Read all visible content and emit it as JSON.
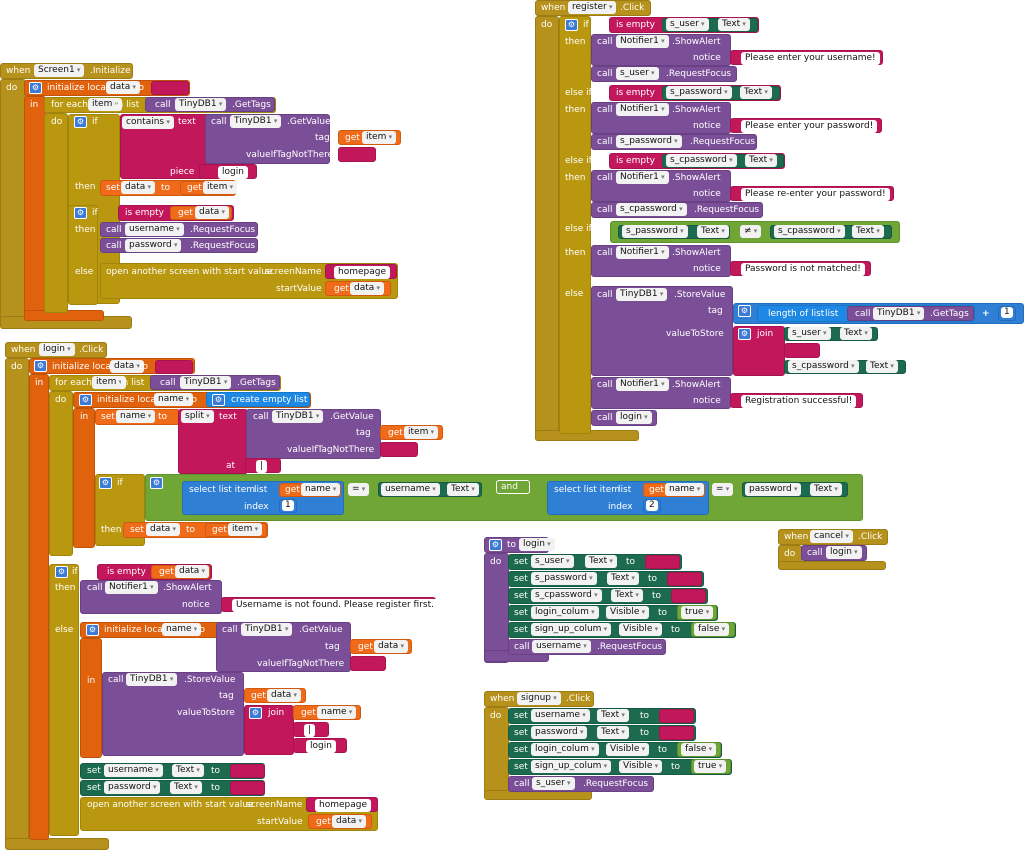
{
  "screen1_init": {
    "when": "when",
    "component": "Screen1",
    "event": ".Initialize",
    "do": "do",
    "in": "in",
    "init_local": "initialize local",
    "var_data": "data",
    "to": "to",
    "for_each": "for each",
    "var_item": "item",
    "in_list": "in list",
    "call": "call",
    "tinydb": "TinyDB1",
    "gettags": ".GetTags",
    "if": "if",
    "contains": "contains",
    "text_lbl": "text",
    "getvalue": ".GetValue",
    "tag": "tag",
    "get": "get",
    "value_if_tag_not_there": "valueIfTagNotThere",
    "piece": "piece",
    "login_str": "login",
    "then": "then",
    "set": "set",
    "is_empty": "is empty",
    "username": "username",
    "password": "password",
    "request_focus": ".RequestFocus",
    "else": "else",
    "open_screen": "open another screen with start value",
    "screen_name": "screenName",
    "homepage": "homepage",
    "start_value": "startValue"
  },
  "register_click": {
    "when": "when",
    "component": "register",
    "event": ".Click",
    "do": "do",
    "if": "if",
    "is_empty": "is empty",
    "s_user": "s_user",
    "text": "Text",
    "then": "then",
    "call": "call",
    "notifier": "Notifier1",
    "show_alert": ".ShowAlert",
    "notice": "notice",
    "msg_username": "Please enter your username!",
    "request_focus": ".RequestFocus",
    "else_if": "else if",
    "s_password": "s_password",
    "msg_password": "Please enter your password!",
    "s_cpassword": "s_cpassword",
    "msg_reenter": "Please re-enter your password!",
    "neq": "≠",
    "msg_not_matched": "Password is not matched!",
    "else": "else",
    "tinydb": "TinyDB1",
    "store_value": ".StoreValue",
    "tag": "tag",
    "length_of_list": "length of list",
    "list": "list",
    "gettags": ".GetTags",
    "plus": "+",
    "one": "1",
    "value_to_store": "valueToStore",
    "join": "join",
    "msg_success": "Registration successful!",
    "login": "login"
  },
  "login_click": {
    "when": "when",
    "component": "login",
    "event": ".Click",
    "do": "do",
    "in": "in",
    "init_local": "initialize local",
    "var_data": "data",
    "to": "to",
    "for_each": "for each",
    "var_item": "item",
    "in_list": "in list",
    "call": "call",
    "tinydb": "TinyDB1",
    "gettags": ".GetTags",
    "var_name": "name",
    "create_empty_list": "create empty list",
    "set": "set",
    "split": "split",
    "text_lbl": "text",
    "getvalue": ".GetValue",
    "tag": "tag",
    "get": "get",
    "value_if_tag_not_there": "valueIfTagNotThere",
    "at": "at",
    "bar": "|",
    "if": "if",
    "select_list_item": "select list item",
    "list": "list",
    "eq": "=",
    "username": "username",
    "text": "Text",
    "and": "and",
    "password": "password",
    "index": "index",
    "idx1": "1",
    "idx2": "2",
    "then": "then",
    "is_empty": "is empty",
    "notifier": "Notifier1",
    "show_alert": ".ShowAlert",
    "notice": "notice",
    "msg_not_found": "Username is not found. Please register first.",
    "else": "else",
    "store_value": ".StoreValue",
    "value_to_store": "valueToStore",
    "join": "join",
    "login_str": "login",
    "open_screen": "open another screen with start value",
    "screen_name": "screenName",
    "homepage": "homepage",
    "start_value": "startValue"
  },
  "to_login": {
    "to": "to",
    "name": "login",
    "do": "do",
    "set": "set",
    "s_user": "s_user",
    "s_password": "s_password",
    "s_cpassword": "s_cpassword",
    "text": "Text",
    "login_colum": "login_colum",
    "sign_up_colum": "sign_up_colum",
    "visible": "Visible",
    "to_kw": "to",
    "true": "true",
    "false": "false",
    "call": "call",
    "username": "username",
    "request_focus": ".RequestFocus"
  },
  "cancel_click": {
    "when": "when",
    "component": "cancel",
    "event": ".Click",
    "do": "do",
    "call": "call",
    "login": "login"
  },
  "signup_click": {
    "when": "when",
    "component": "signup",
    "event": ".Click",
    "do": "do",
    "set": "set",
    "username": "username",
    "password": "password",
    "text": "Text",
    "to": "to",
    "login_colum": "login_colum",
    "sign_up_colum": "sign_up_colum",
    "visible": "Visible",
    "false": "false",
    "true": "true",
    "call": "call",
    "s_user": "s_user",
    "request_focus": ".RequestFocus"
  }
}
